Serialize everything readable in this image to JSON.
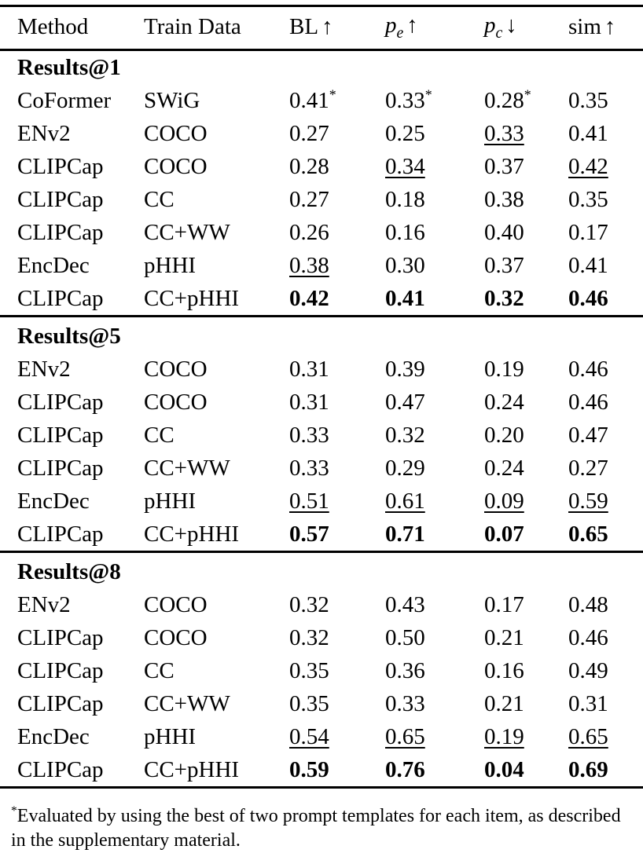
{
  "colors": {
    "text": "#000000",
    "background": "#ffffff",
    "rule": "#000000"
  },
  "table": {
    "columns": [
      {
        "key": "method",
        "label": "Method"
      },
      {
        "key": "train-data",
        "label": "Train Data"
      },
      {
        "key": "bl",
        "label": "BL",
        "arrow": "↑"
      },
      {
        "key": "pe",
        "label": "p",
        "sub": "e",
        "math": true,
        "arrow": "↑"
      },
      {
        "key": "pc",
        "label": "p",
        "sub": "c",
        "math": true,
        "arrow": "↓"
      },
      {
        "key": "sim",
        "label": "sim",
        "arrow": "↑"
      }
    ],
    "sections": [
      {
        "title": "Results@1",
        "rows": [
          {
            "method": "CoFormer",
            "train_data": "SWiG",
            "values": [
              {
                "t": "0.41",
                "star": true
              },
              {
                "t": "0.33",
                "star": true
              },
              {
                "t": "0.28",
                "star": true
              },
              {
                "t": "0.35"
              }
            ]
          },
          {
            "method": "ENv2",
            "train_data": "COCO",
            "values": [
              {
                "t": "0.27"
              },
              {
                "t": "0.25"
              },
              {
                "t": "0.33",
                "u": true
              },
              {
                "t": "0.41"
              }
            ]
          },
          {
            "method": "CLIPCap",
            "train_data": "COCO",
            "values": [
              {
                "t": "0.28"
              },
              {
                "t": "0.34",
                "u": true
              },
              {
                "t": "0.37"
              },
              {
                "t": "0.42",
                "u": true
              }
            ]
          },
          {
            "method": "CLIPCap",
            "train_data": "CC",
            "values": [
              {
                "t": "0.27"
              },
              {
                "t": "0.18"
              },
              {
                "t": "0.38"
              },
              {
                "t": "0.35"
              }
            ]
          },
          {
            "method": "CLIPCap",
            "train_data": "CC+WW",
            "values": [
              {
                "t": "0.26"
              },
              {
                "t": "0.16"
              },
              {
                "t": "0.40"
              },
              {
                "t": "0.17"
              }
            ]
          },
          {
            "method": "EncDec",
            "train_data": "pHHI",
            "values": [
              {
                "t": "0.38",
                "u": true
              },
              {
                "t": "0.30"
              },
              {
                "t": "0.37"
              },
              {
                "t": "0.41"
              }
            ]
          },
          {
            "method": "CLIPCap",
            "train_data": "CC+pHHI",
            "values": [
              {
                "t": "0.42",
                "b": true
              },
              {
                "t": "0.41",
                "b": true
              },
              {
                "t": "0.32",
                "b": true
              },
              {
                "t": "0.46",
                "b": true
              }
            ]
          }
        ]
      },
      {
        "title": "Results@5",
        "rows": [
          {
            "method": "ENv2",
            "train_data": "COCO",
            "values": [
              {
                "t": "0.31"
              },
              {
                "t": "0.39"
              },
              {
                "t": "0.19"
              },
              {
                "t": "0.46"
              }
            ]
          },
          {
            "method": "CLIPCap",
            "train_data": "COCO",
            "values": [
              {
                "t": "0.31"
              },
              {
                "t": "0.47"
              },
              {
                "t": "0.24"
              },
              {
                "t": "0.46"
              }
            ]
          },
          {
            "method": "CLIPCap",
            "train_data": "CC",
            "values": [
              {
                "t": "0.33"
              },
              {
                "t": "0.32"
              },
              {
                "t": "0.20"
              },
              {
                "t": "0.47"
              }
            ]
          },
          {
            "method": "CLIPCap",
            "train_data": "CC+WW",
            "values": [
              {
                "t": "0.33"
              },
              {
                "t": "0.29"
              },
              {
                "t": "0.24"
              },
              {
                "t": "0.27"
              }
            ]
          },
          {
            "method": "EncDec",
            "train_data": "pHHI",
            "values": [
              {
                "t": "0.51",
                "u": true
              },
              {
                "t": "0.61",
                "u": true
              },
              {
                "t": "0.09",
                "u": true
              },
              {
                "t": "0.59",
                "u": true
              }
            ]
          },
          {
            "method": "CLIPCap",
            "train_data": "CC+pHHI",
            "values": [
              {
                "t": "0.57",
                "b": true
              },
              {
                "t": "0.71",
                "b": true
              },
              {
                "t": "0.07",
                "b": true
              },
              {
                "t": "0.65",
                "b": true
              }
            ]
          }
        ]
      },
      {
        "title": "Results@8",
        "rows": [
          {
            "method": "ENv2",
            "train_data": "COCO",
            "values": [
              {
                "t": "0.32"
              },
              {
                "t": "0.43"
              },
              {
                "t": "0.17"
              },
              {
                "t": "0.48"
              }
            ]
          },
          {
            "method": "CLIPCap",
            "train_data": "COCO",
            "values": [
              {
                "t": "0.32"
              },
              {
                "t": "0.50"
              },
              {
                "t": "0.21"
              },
              {
                "t": "0.46"
              }
            ]
          },
          {
            "method": "CLIPCap",
            "train_data": "CC",
            "values": [
              {
                "t": "0.35"
              },
              {
                "t": "0.36"
              },
              {
                "t": "0.16"
              },
              {
                "t": "0.49"
              }
            ]
          },
          {
            "method": "CLIPCap",
            "train_data": "CC+WW",
            "values": [
              {
                "t": "0.35"
              },
              {
                "t": "0.33"
              },
              {
                "t": "0.21"
              },
              {
                "t": "0.31"
              }
            ]
          },
          {
            "method": "EncDec",
            "train_data": "pHHI",
            "values": [
              {
                "t": "0.54",
                "u": true
              },
              {
                "t": "0.65",
                "u": true
              },
              {
                "t": "0.19",
                "u": true
              },
              {
                "t": "0.65",
                "u": true
              }
            ]
          },
          {
            "method": "CLIPCap",
            "train_data": "CC+pHHI",
            "values": [
              {
                "t": "0.59",
                "b": true
              },
              {
                "t": "0.76",
                "b": true
              },
              {
                "t": "0.04",
                "b": true
              },
              {
                "t": "0.69",
                "b": true
              }
            ]
          }
        ]
      }
    ]
  },
  "footnote": {
    "marker": "*",
    "text": "Evaluated by using the best of two prompt templates for each item, as described in the supplementary material."
  }
}
